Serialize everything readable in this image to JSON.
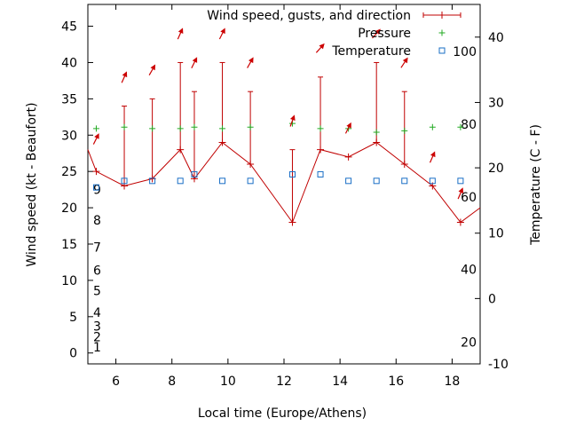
{
  "chart_data": {
    "type": "line",
    "xlabel": "Local time (Europe/Athens)",
    "ylabel_left": "Wind speed (kt - Beaufort)",
    "ylabel_right": "Temperature (C - F)",
    "xlim": [
      5.0,
      19.0
    ],
    "ylim_left": [
      -1.5,
      48
    ],
    "ylim_right": [
      -10,
      45
    ],
    "x_ticks": [
      6,
      8,
      10,
      12,
      14,
      16,
      18
    ],
    "y_left_ticks": [
      0,
      5,
      10,
      15,
      20,
      25,
      30,
      35,
      40,
      45
    ],
    "y_right_ticks_c": [
      -10,
      0,
      10,
      20,
      30,
      40
    ],
    "fahrenheit_labels": [
      {
        "label": "20",
        "c": -6.67
      },
      {
        "label": "40",
        "c": 4.44
      },
      {
        "label": "60",
        "c": 15.56
      },
      {
        "label": "80",
        "c": 26.67
      },
      {
        "label": "100",
        "c": 37.78
      }
    ],
    "beaufort_labels": [
      {
        "label": "1",
        "kt": 0.8
      },
      {
        "label": "2",
        "kt": 2.2
      },
      {
        "label": "3",
        "kt": 3.7
      },
      {
        "label": "4",
        "kt": 5.6
      },
      {
        "label": "5",
        "kt": 8.6
      },
      {
        "label": "6",
        "kt": 11.4
      },
      {
        "label": "7",
        "kt": 14.6
      },
      {
        "label": "8",
        "kt": 18.3
      },
      {
        "label": "9",
        "kt": 22.5
      }
    ],
    "legend": [
      {
        "name": "Wind speed, gusts, and direction",
        "color": "#c00000"
      },
      {
        "name": "Pressure",
        "color": "#22aa22"
      },
      {
        "name": "Temperature",
        "color": "#1a6fc6"
      }
    ],
    "legend_position": "top-right",
    "grid": false,
    "series": [
      {
        "name": "Wind speed, gusts, and direction",
        "x": [
          4.3,
          5.3,
          6.3,
          7.3,
          8.3,
          8.8,
          9.8,
          10.8,
          12.3,
          13.3,
          14.3,
          15.3,
          16.3,
          17.3,
          18.3,
          19.3
        ],
        "speed": [
          28,
          25,
          23,
          24,
          28,
          24,
          29,
          26,
          18,
          28,
          27,
          29,
          26,
          23,
          18,
          20
        ],
        "gust": [
          null,
          null,
          34,
          35,
          40,
          36,
          40,
          36,
          28,
          38,
          null,
          40,
          36,
          null,
          null,
          null
        ],
        "direction_arrow_dx": [
          null,
          0.35,
          0.45,
          0.4,
          0.4,
          0.4,
          0.4,
          0.4,
          0.25,
          0.45,
          0.3,
          0.45,
          0.4,
          0.35,
          0.3,
          null
        ],
        "direction_arrow_dy": [
          null,
          -0.7,
          -1.0,
          -0.7,
          -0.9,
          -0.8,
          -0.8,
          -0.7,
          -0.7,
          -0.5,
          -0.6,
          -0.5,
          -0.6,
          -0.8,
          -0.7,
          null
        ],
        "direction_label_kt": [
          null,
          29.5,
          38,
          39,
          44,
          40,
          44,
          40,
          32,
          42,
          31,
          44,
          40,
          27,
          22,
          null
        ]
      },
      {
        "name": "Pressure",
        "x": [
          5.3,
          6.3,
          7.3,
          8.3,
          8.8,
          9.8,
          10.8,
          12.3,
          13.3,
          14.3,
          15.3,
          16.3,
          17.3,
          18.3
        ],
        "values_kt": [
          30.9,
          31.1,
          30.9,
          30.9,
          31.1,
          30.9,
          31.1,
          31.6,
          30.9,
          30.9,
          30.4,
          30.6,
          31.1,
          31.1
        ]
      },
      {
        "name": "Temperature",
        "x": [
          5.3,
          6.3,
          7.3,
          8.3,
          8.8,
          9.8,
          10.8,
          12.3,
          13.3,
          14.3,
          15.3,
          16.3,
          17.3,
          18.3
        ],
        "values_c": [
          17.0,
          18.0,
          18.0,
          18.0,
          19.0,
          18.0,
          18.0,
          19.0,
          19.0,
          18.0,
          18.0,
          18.0,
          18.0,
          18.0
        ]
      }
    ]
  }
}
